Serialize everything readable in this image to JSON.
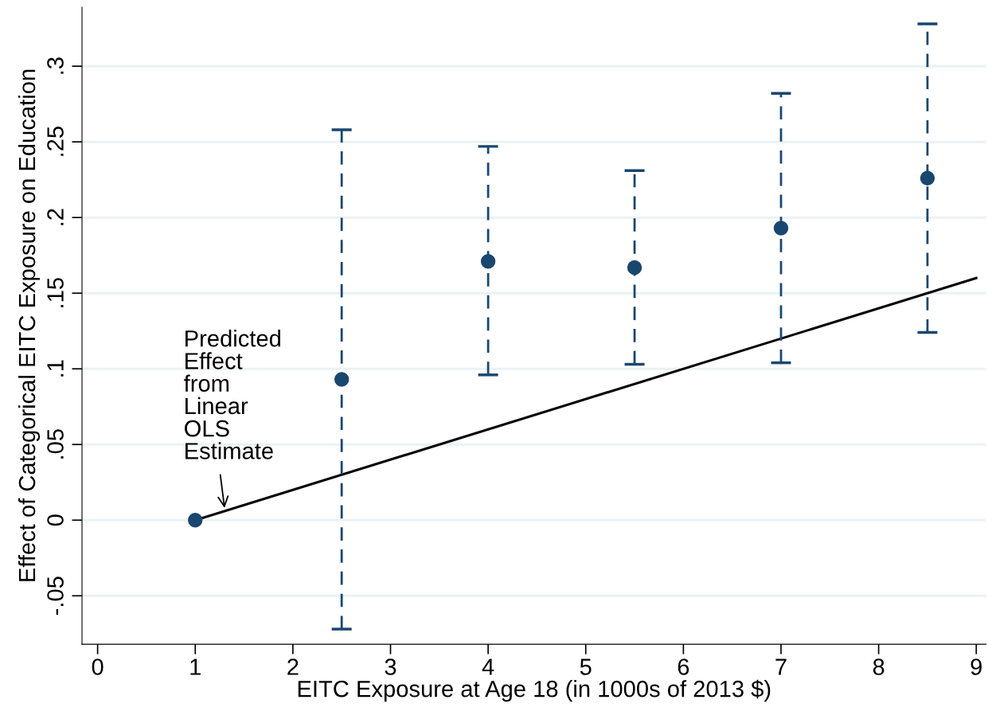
{
  "chart_data": {
    "type": "scatter",
    "xlabel": "EITC Exposure at Age 18 (in 1000s of 2013 $)",
    "ylabel": "Effect of Categorical EITC Exposure on Education",
    "series": [
      {
        "type": "line",
        "color": "#000000",
        "x": [
          1,
          9
        ],
        "values": [
          0,
          0.16
        ],
        "line_style": "solid",
        "marker": "none"
      },
      {
        "color": "#1a476f",
        "x": [
          1,
          2.5,
          4,
          5.5,
          7,
          8.5
        ],
        "values": [
          0,
          0.093,
          0.171,
          0.167,
          0.193,
          0.226
        ],
        "errors": [
          null,
          [
            -0.072,
            0.258
          ],
          [
            0.096,
            0.247
          ],
          [
            0.103,
            0.231
          ],
          [
            0.104,
            0.282
          ],
          [
            0.124,
            0.328
          ]
        ],
        "line_style": "dashed",
        "marker": "circle"
      }
    ],
    "annotations": [
      {
        "text": "Predicted\nEffect\nfrom\nLinear\nOLS\nEstimate",
        "x": 1.3,
        "y": 0.008
      }
    ],
    "xlim": [
      -0.16,
      9.1
    ],
    "ylim": [
      -0.082,
      0.339
    ],
    "xticks": [
      0,
      1,
      2,
      3,
      4,
      5,
      6,
      7,
      8,
      9
    ],
    "yticks": [
      {
        "value": -0.05,
        "label": "-.05"
      },
      {
        "value": 0,
        "label": "0"
      },
      {
        "value": 0.05,
        "label": ".05"
      },
      {
        "value": 0.1,
        "label": ".1"
      },
      {
        "value": 0.15,
        "label": ".15"
      },
      {
        "value": 0.2,
        "label": ".2"
      },
      {
        "value": 0.25,
        "label": ".25"
      },
      {
        "value": 0.3,
        "label": ".3"
      }
    ],
    "grid": "y",
    "legend": false
  }
}
